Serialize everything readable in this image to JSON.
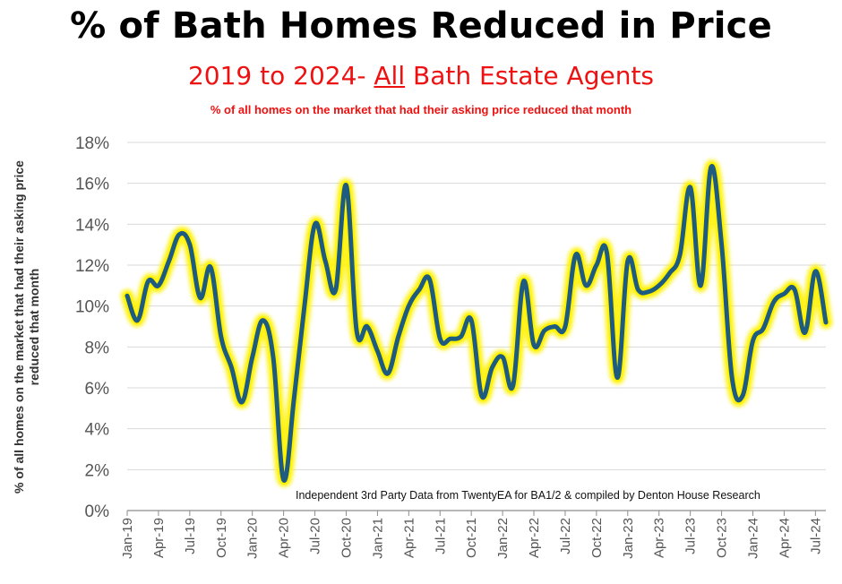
{
  "chart_data": {
    "type": "line",
    "title": "% of Bath Homes Reduced in Price",
    "subtitle_prefix": "2019 to 2024- ",
    "subtitle_underlined": "All",
    "subtitle_suffix": " Bath Estate Agents",
    "subtitle2": "% of all homes on the market that had their asking price reduced that month",
    "ylabel_line1": "% of all homes on the market that had their asking price",
    "ylabel_line2": "reduced that month",
    "xlabel": "",
    "source_note": "Independent 3rd Party Data from TwentyEA for BA1/2 & compiled by Denton House Research",
    "ylim": [
      0,
      18
    ],
    "yticks": [
      0,
      2,
      4,
      6,
      8,
      10,
      12,
      14,
      16,
      18
    ],
    "ytick_labels": [
      "0%",
      "2%",
      "4%",
      "6%",
      "8%",
      "10%",
      "12%",
      "14%",
      "16%",
      "18%"
    ],
    "grid": "horizontal",
    "x_tick_labels": [
      "Jan-19",
      "Apr-19",
      "Jul-19",
      "Oct-19",
      "Jan-20",
      "Apr-20",
      "Jul-20",
      "Oct-20",
      "Jan-21",
      "Apr-21",
      "Jul-21",
      "Oct-21",
      "Jan-22",
      "Apr-22",
      "Jul-22",
      "Oct-22",
      "Jan-23",
      "Apr-23",
      "Jul-23",
      "Oct-23",
      "Jan-24",
      "Apr-24",
      "Jul-24"
    ],
    "x": [
      "Jan-19",
      "Feb-19",
      "Mar-19",
      "Apr-19",
      "May-19",
      "Jun-19",
      "Jul-19",
      "Aug-19",
      "Sep-19",
      "Oct-19",
      "Nov-19",
      "Dec-19",
      "Jan-20",
      "Feb-20",
      "Mar-20",
      "Apr-20",
      "May-20",
      "Jun-20",
      "Jul-20",
      "Aug-20",
      "Sep-20",
      "Oct-20",
      "Nov-20",
      "Dec-20",
      "Jan-21",
      "Feb-21",
      "Mar-21",
      "Apr-21",
      "May-21",
      "Jun-21",
      "Jul-21",
      "Aug-21",
      "Sep-21",
      "Oct-21",
      "Nov-21",
      "Dec-21",
      "Jan-22",
      "Feb-22",
      "Mar-22",
      "Apr-22",
      "May-22",
      "Jun-22",
      "Jul-22",
      "Aug-22",
      "Sep-22",
      "Oct-22",
      "Nov-22",
      "Dec-22",
      "Jan-23",
      "Feb-23",
      "Mar-23",
      "Apr-23",
      "May-23",
      "Jun-23",
      "Jul-23",
      "Aug-23",
      "Sep-23",
      "Oct-23",
      "Nov-23",
      "Dec-23",
      "Jan-24",
      "Feb-24",
      "Mar-24",
      "Apr-24",
      "May-24",
      "Jun-24",
      "Jul-24",
      "Aug-24"
    ],
    "series": [
      {
        "values": [
          10.5,
          9.3,
          11.2,
          11.0,
          12.2,
          13.5,
          13.0,
          10.4,
          11.9,
          8.5,
          7.0,
          5.3,
          7.5,
          9.3,
          7.5,
          1.5,
          5.5,
          10.0,
          14.0,
          12.2,
          10.8,
          15.9,
          8.8,
          9.0,
          7.8,
          6.7,
          8.5,
          10.0,
          10.8,
          11.3,
          8.4,
          8.4,
          8.5,
          9.3,
          5.6,
          7.0,
          7.5,
          6.1,
          11.2,
          8.1,
          8.8,
          9.0,
          9.0,
          12.5,
          11.0,
          12.0,
          12.6,
          6.5,
          12.2,
          10.8,
          10.7,
          11.0,
          11.6,
          12.5,
          15.8,
          11.0,
          16.8,
          13.0,
          6.5,
          5.6,
          8.3,
          8.9,
          10.2,
          10.6,
          10.8,
          8.7,
          11.7,
          9.2
        ],
        "color": "#1d5b80",
        "glow": "#fff200"
      }
    ]
  }
}
